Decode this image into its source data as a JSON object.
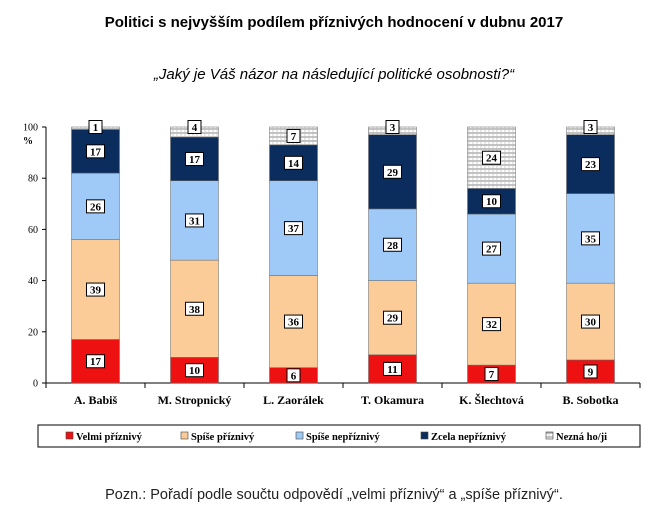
{
  "chart_data": {
    "type": "bar",
    "stacked": true,
    "title": "Politici s nejvyšším podílem příznivých hodnocení v dubnu 2017",
    "subtitle": "„Jaký je Váš názor na následující politické osobnosti?“",
    "ylabel": "%",
    "ylim": [
      0,
      100
    ],
    "yticks": [
      0,
      20,
      40,
      60,
      80,
      100
    ],
    "categories": [
      "A. Babiš",
      "M. Stropnický",
      "L. Zaorálek",
      "T. Okamura",
      "K. Šlechtová",
      "B. Sobotka"
    ],
    "series": [
      {
        "name": "Velmi příznivý",
        "color": "#ee1111",
        "values": [
          17,
          10,
          6,
          11,
          7,
          9
        ]
      },
      {
        "name": "Spíše příznivý",
        "color": "#fbcb98",
        "values": [
          39,
          38,
          36,
          29,
          32,
          30
        ]
      },
      {
        "name": "Spíše nepříznivý",
        "color": "#9fcaf7",
        "values": [
          26,
          31,
          37,
          28,
          27,
          35
        ]
      },
      {
        "name": "Zcela nepříznivý",
        "color": "#0b2d5e",
        "values": [
          17,
          17,
          14,
          29,
          10,
          23
        ]
      },
      {
        "name": "Nezná ho/ji",
        "color": "#ffffff",
        "pattern": "hatch",
        "values": [
          1,
          4,
          7,
          3,
          24,
          3
        ]
      }
    ],
    "legend_position": "bottom",
    "grid": false
  },
  "note": "Pozn.: Pořadí podle součtu odpovědí „velmi příznivý“ a „spíše příznivý“."
}
